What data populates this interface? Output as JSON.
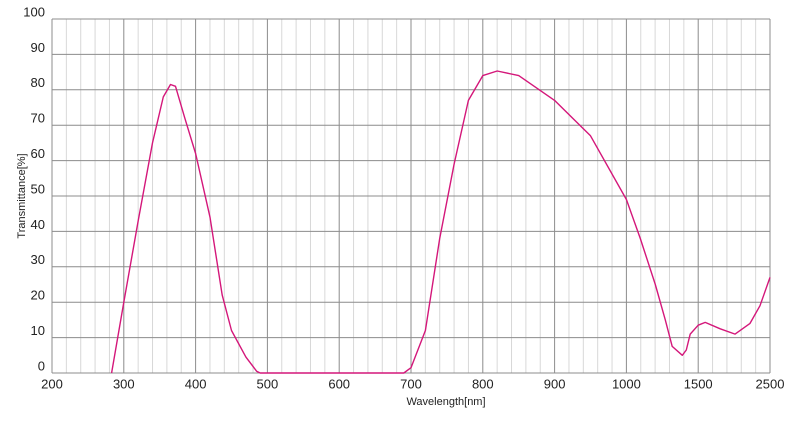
{
  "chart_data": {
    "type": "line",
    "x_label": "Wavelength[nm]",
    "y_label": "Transmittance[%]",
    "x": [
      283,
      300,
      320,
      340,
      355,
      365,
      372,
      385,
      400,
      420,
      437,
      450,
      470,
      485,
      490,
      690,
      700,
      720,
      740,
      760,
      780,
      800,
      820,
      850,
      900,
      950,
      1000,
      1097,
      1201,
      1271,
      1319,
      1389,
      1417,
      1444,
      1500,
      1597,
      1806,
      2014,
      2222,
      2361,
      2500
    ],
    "series": [
      {
        "name": "Transmittance",
        "color": "#d4177a",
        "values": [
          0,
          20,
          43,
          65,
          78,
          81.5,
          81,
          72,
          62,
          44,
          22,
          12,
          4.5,
          0.5,
          0,
          0,
          1.5,
          12,
          38,
          59,
          77,
          84,
          85.3,
          84,
          77,
          67,
          49,
          38,
          25,
          15,
          7.5,
          5,
          6.5,
          11,
          13.5,
          14.3,
          12.5,
          11,
          14,
          19,
          27
        ]
      }
    ],
    "xlim": [
      200,
      2500
    ],
    "xticks": [
      200,
      300,
      400,
      500,
      600,
      700,
      800,
      900,
      1000,
      1500,
      2500
    ],
    "ylim": [
      0,
      100
    ],
    "yticks": [
      0,
      10,
      20,
      30,
      40,
      50,
      60,
      70,
      80,
      90,
      100
    ],
    "grid": true
  }
}
